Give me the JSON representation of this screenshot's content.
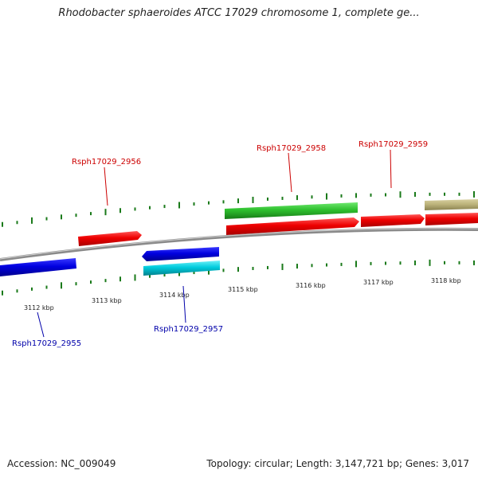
{
  "title": "Rhodobacter sphaeroides ATCC 17029 chromosome 1, complete ge...",
  "footer": {
    "accession": "Accession: NC_009049",
    "summary": "Topology: circular; Length: 3,147,721 bp; Genes: 3,017"
  },
  "colors": {
    "forward_cds": "#e00000",
    "reverse_cds": "#0000dd",
    "forward_other": "#22bb22",
    "reverse_other": "#00c8d8",
    "tan_feature": "#bbb27a",
    "backbone": "#8a8a8a",
    "gc_ticks": "#1a7a1a",
    "label_forward": "#cc0000",
    "label_reverse": "#0000aa"
  },
  "scale_labels": [
    "3112 kbp",
    "3113 kbp",
    "3114 kbp",
    "3115 kbp",
    "3116 kbp",
    "3117 kbp",
    "3118 kbp"
  ],
  "gene_labels": {
    "g2955": "Rsph17029_2955",
    "g2956": "Rsph17029_2956",
    "g2957": "Rsph17029_2957",
    "g2958": "Rsph17029_2958",
    "g2959": "Rsph17029_2959"
  }
}
